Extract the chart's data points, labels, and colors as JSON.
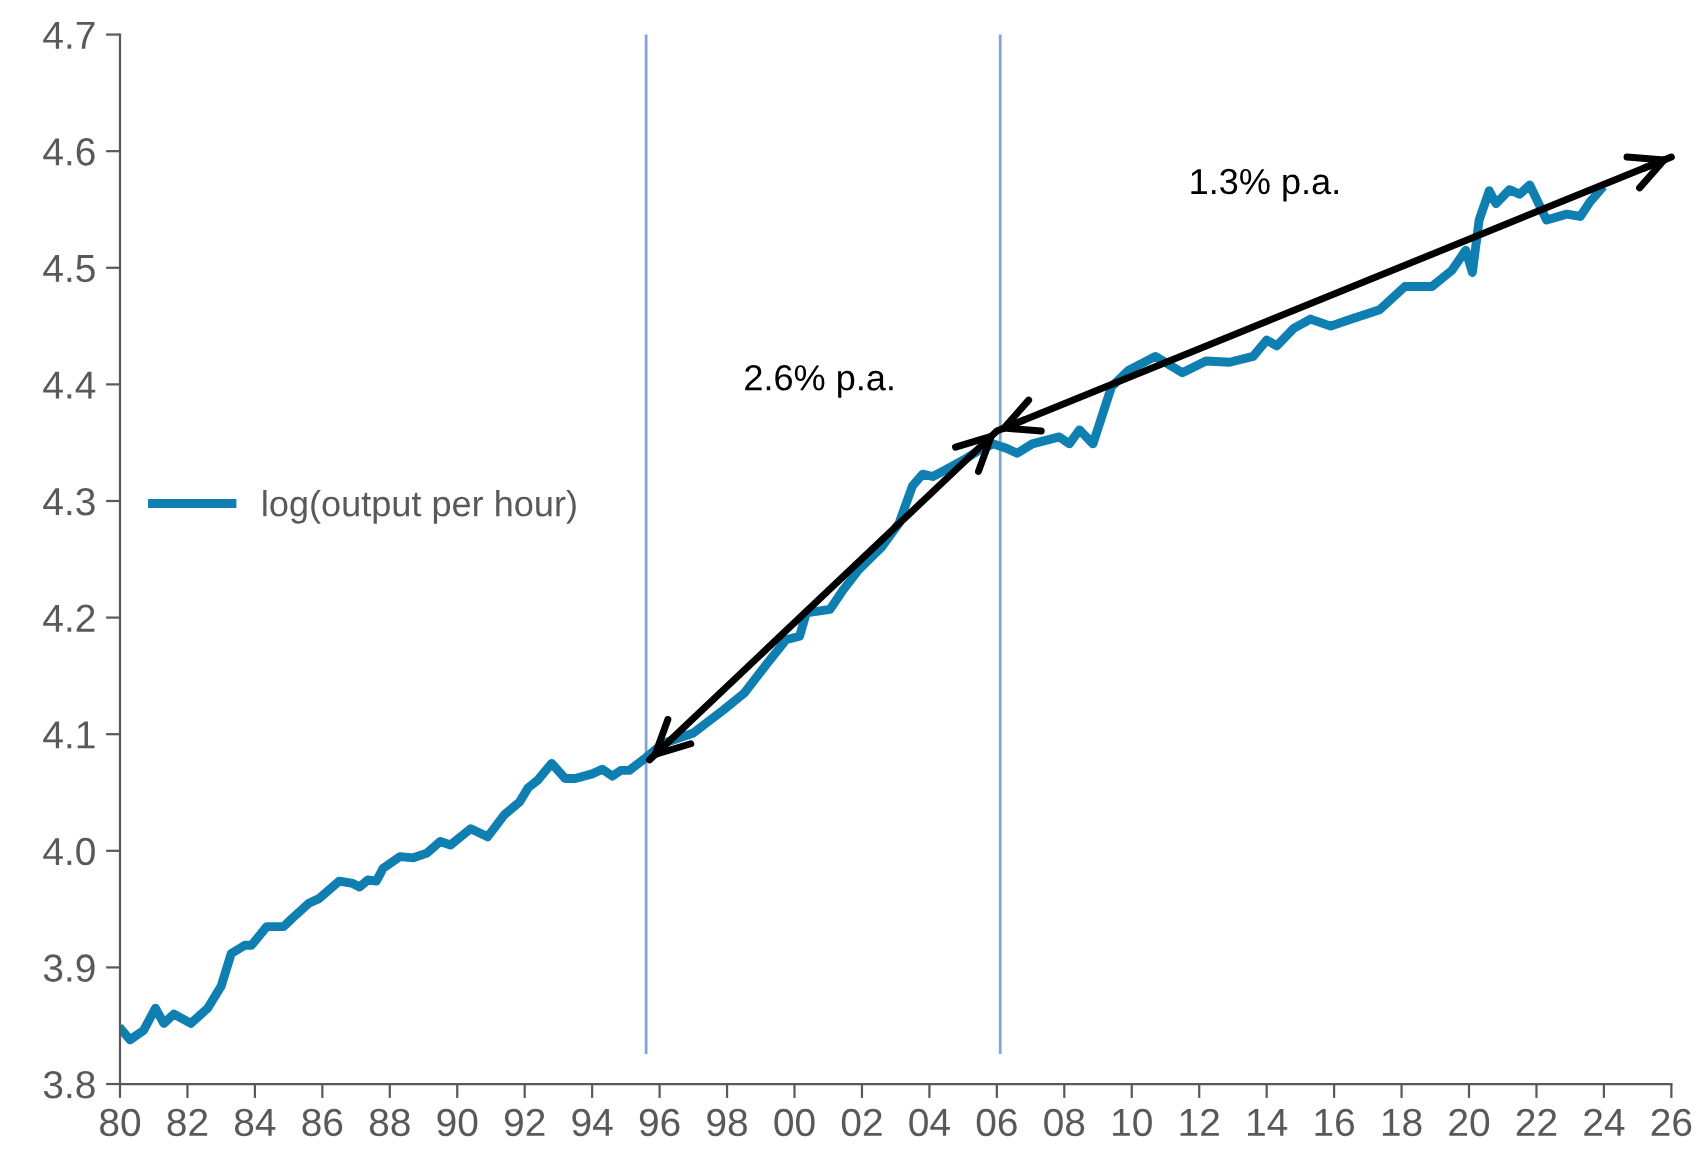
{
  "chart_data": {
    "type": "line",
    "x": [
      1980.06,
      1980.3,
      1980.7,
      1981.05,
      1981.3,
      1981.6,
      1982.1,
      1982.6,
      1983.0,
      1983.3,
      1983.7,
      1983.9,
      1984.35,
      1984.85,
      1985.1,
      1985.6,
      1985.9,
      1986.5,
      1986.9,
      1987.1,
      1987.35,
      1987.6,
      1987.8,
      1988.3,
      1988.7,
      1989.1,
      1989.5,
      1989.8,
      1990.4,
      1990.9,
      1991.4,
      1991.85,
      1992.1,
      1992.4,
      1992.8,
      1993.2,
      1993.5,
      1994.0,
      1994.3,
      1994.6,
      1994.85,
      1995.1,
      1995.6,
      1996.1,
      1997.0,
      1997.9,
      1998.5,
      1999.2,
      1999.75,
      2000.15,
      2000.35,
      2001.05,
      2001.45,
      2001.9,
      2002.6,
      2003.1,
      2003.5,
      2003.8,
      2004.1,
      2004.5,
      2005.0,
      2005.5,
      2005.9,
      2006.3,
      2006.6,
      2007.05,
      2007.85,
      2008.15,
      2008.45,
      2008.85,
      2009.4,
      2009.9,
      2010.7,
      2011.5,
      2012.2,
      2012.9,
      2013.6,
      2014.0,
      2014.3,
      2014.8,
      2015.3,
      2015.9,
      2016.4,
      2017.35,
      2018.1,
      2018.9,
      2019.5,
      2019.9,
      2020.1,
      2020.3,
      2020.6,
      2020.8,
      2021.2,
      2021.5,
      2021.8,
      2022.3,
      2022.9,
      2023.3,
      2023.6,
      2023.9
    ],
    "series": [
      {
        "name": "log(output per hour)",
        "color": "#0e7fb0",
        "values": [
          3.846,
          3.838,
          3.846,
          3.865,
          3.852,
          3.86,
          3.852,
          3.865,
          3.884,
          3.912,
          3.919,
          3.919,
          3.935,
          3.935,
          3.942,
          3.955,
          3.959,
          3.974,
          3.972,
          3.969,
          3.975,
          3.974,
          3.985,
          3.995,
          3.994,
          3.998,
          4.008,
          4.005,
          4.019,
          4.012,
          4.031,
          4.042,
          4.054,
          4.061,
          4.075,
          4.062,
          4.062,
          4.066,
          4.07,
          4.064,
          4.069,
          4.069,
          4.08,
          4.092,
          4.101,
          4.121,
          4.135,
          4.161,
          4.181,
          4.184,
          4.204,
          4.207,
          4.224,
          4.241,
          4.261,
          4.281,
          4.313,
          4.323,
          4.321,
          4.327,
          4.335,
          4.344,
          4.349,
          4.345,
          4.341,
          4.349,
          4.355,
          4.349,
          4.361,
          4.349,
          4.398,
          4.412,
          4.424,
          4.41,
          4.42,
          4.419,
          4.424,
          4.438,
          4.433,
          4.448,
          4.456,
          4.45,
          4.455,
          4.464,
          4.484,
          4.484,
          4.498,
          4.515,
          4.496,
          4.541,
          4.566,
          4.555,
          4.567,
          4.563,
          4.571,
          4.541,
          4.546,
          4.544,
          4.557,
          4.567
        ]
      },
      {
        "type": "line",
        "color": "#000000",
        "x": [
          1995.7,
          2006.0,
          2026.0
        ],
        "values": [
          4.078,
          4.36,
          4.595
        ]
      }
    ],
    "xlim": [
      1980,
      2026
    ],
    "xticks": [
      {
        "value": 1980,
        "label": "80"
      },
      {
        "value": 1982,
        "label": "82"
      },
      {
        "value": 1984,
        "label": "84"
      },
      {
        "value": 1986,
        "label": "86"
      },
      {
        "value": 1988,
        "label": "88"
      },
      {
        "value": 1990,
        "label": "90"
      },
      {
        "value": 1992,
        "label": "92"
      },
      {
        "value": 1994,
        "label": "94"
      },
      {
        "value": 1996,
        "label": "96"
      },
      {
        "value": 1998,
        "label": "98"
      },
      {
        "value": 2000,
        "label": "00"
      },
      {
        "value": 2002,
        "label": "02"
      },
      {
        "value": 2004,
        "label": "04"
      },
      {
        "value": 2006,
        "label": "06"
      },
      {
        "value": 2008,
        "label": "08"
      },
      {
        "value": 2010,
        "label": "10"
      },
      {
        "value": 2012,
        "label": "12"
      },
      {
        "value": 2014,
        "label": "14"
      },
      {
        "value": 2016,
        "label": "16"
      },
      {
        "value": 2018,
        "label": "18"
      },
      {
        "value": 2020,
        "label": "20"
      },
      {
        "value": 2022,
        "label": "22"
      },
      {
        "value": 2024,
        "label": "24"
      },
      {
        "value": 2026,
        "label": "26"
      }
    ],
    "ylim": [
      3.8,
      4.7
    ],
    "yticks": [
      3.8,
      3.9,
      {
        "value": 4,
        "label": "4.0"
      },
      4.1,
      4.2,
      4.3,
      4.4,
      4.5,
      4.6,
      4.7
    ],
    "ref_lines": [
      {
        "axis": "x",
        "value": 1995.6,
        "color": "#7fa6d6"
      },
      {
        "axis": "x",
        "value": 2006.1,
        "color": "#7fa6d6"
      }
    ],
    "annotations": [
      "2.6% p.a.",
      "1.3% p.a."
    ],
    "legend": "center left",
    "grid": false
  }
}
